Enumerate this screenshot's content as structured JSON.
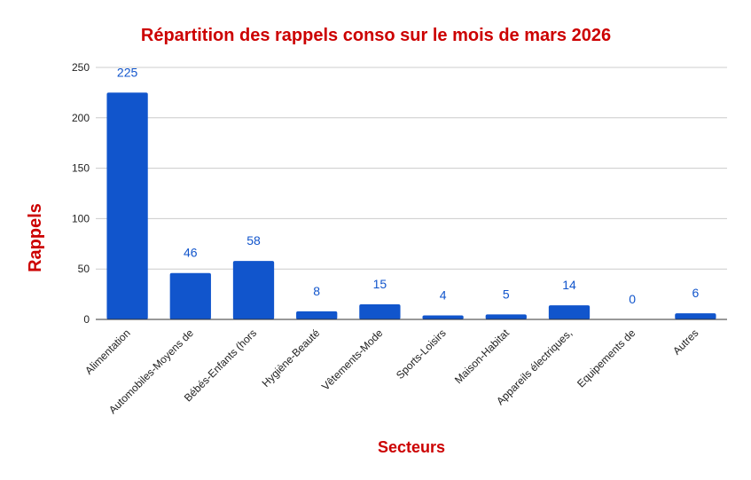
{
  "chart_data": {
    "type": "bar",
    "title": "Répartition des rappels conso sur le mois de mars 2026",
    "xlabel": "Secteurs",
    "ylabel": "Rappels",
    "categories": [
      "Alimentation",
      "Automobiles-Moyens de",
      "Bébés-Enfants (hors",
      "Hygiène-Beauté",
      "Vêtements-Mode",
      "Sports-Loisirs",
      "Maison-Habitat",
      "Appareils électriques,",
      "Equipements de",
      "Autres"
    ],
    "values": [
      225,
      46,
      58,
      8,
      15,
      4,
      5,
      14,
      0,
      6
    ],
    "ylim": [
      0,
      250
    ],
    "yticks": [
      0,
      50,
      100,
      150,
      200,
      250
    ],
    "grid": true,
    "legend": "none",
    "colors": {
      "bar": "#1155cc",
      "data_label": "#1155cc",
      "title": "#cc0000",
      "axis_title": "#cc0000",
      "gridline": "#cccccc",
      "axis": "#333333"
    }
  }
}
